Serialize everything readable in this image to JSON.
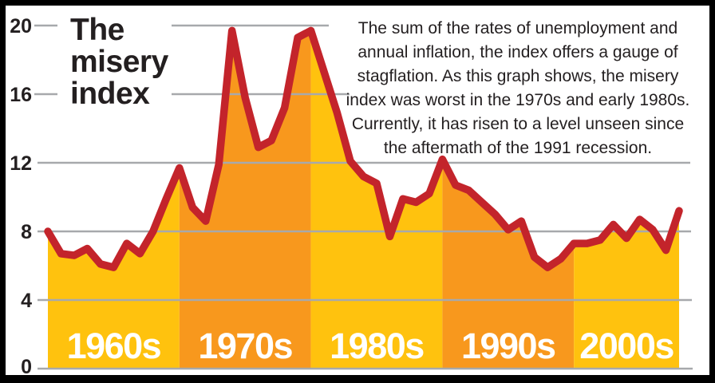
{
  "title": "The misery index",
  "description": {
    "lines": [
      "The sum of the rates of unemployment and",
      "annual inflation, the index offers a gauge of",
      "stagflation. As this graph shows, the misery",
      "index was worst in the 1970s and early 1980s.",
      "Currently, it has risen to a level unseen since",
      "the aftermath of the 1991 recession."
    ]
  },
  "chart_data": {
    "type": "area",
    "title": "The misery index",
    "subtitle": "The sum of the rates of unemployment and annual inflation, the index offers a gauge of stagflation. As this graph shows, the misery index was worst in the 1970s and early 1980s. Currently, it has risen to a level unseen since the aftermath of the 1991 recession.",
    "x_range": [
      1960,
      2008
    ],
    "ylim": [
      0,
      20
    ],
    "yticks": [
      20,
      16,
      12,
      8,
      4,
      0
    ],
    "grid": true,
    "years": [
      1960,
      1961,
      1962,
      1963,
      1964,
      1965,
      1966,
      1967,
      1968,
      1969,
      1970,
      1971,
      1972,
      1973,
      1974,
      1975,
      1976,
      1977,
      1978,
      1979,
      1980,
      1981,
      1982,
      1983,
      1984,
      1985,
      1986,
      1987,
      1988,
      1989,
      1990,
      1991,
      1992,
      1993,
      1994,
      1995,
      1996,
      1997,
      1998,
      1999,
      2000,
      2001,
      2002,
      2003,
      2004,
      2005,
      2006,
      2007,
      2008
    ],
    "values": [
      8.0,
      6.7,
      6.6,
      7.0,
      6.1,
      5.9,
      7.3,
      6.7,
      8.0,
      9.9,
      11.7,
      9.4,
      8.6,
      11.9,
      19.7,
      15.8,
      12.9,
      13.3,
      15.2,
      19.3,
      19.7,
      17.3,
      14.9,
      12.1,
      11.2,
      10.8,
      7.7,
      9.9,
      9.7,
      10.2,
      12.2,
      10.7,
      10.4,
      9.7,
      9.0,
      8.1,
      8.6,
      6.5,
      5.9,
      6.4,
      7.3,
      7.3,
      7.5,
      8.4,
      7.6,
      8.7,
      8.1,
      6.9,
      9.2
    ],
    "decade_bands": [
      {
        "label": "1960s",
        "from": 1960,
        "to": 1970,
        "fill": "#FFC20E"
      },
      {
        "label": "1970s",
        "from": 1970,
        "to": 1980,
        "fill": "#F8981D"
      },
      {
        "label": "1980s",
        "from": 1980,
        "to": 1990,
        "fill": "#FFC20E"
      },
      {
        "label": "1990s",
        "from": 1990,
        "to": 2000,
        "fill": "#F8981D"
      },
      {
        "label": "2000s",
        "from": 2000,
        "to": 2008,
        "fill": "#FFC20E"
      }
    ],
    "colors": {
      "line": "#C3242B",
      "band_yellow": "#FFC20E",
      "band_orange": "#F8981D",
      "grid": "#A7A9AC",
      "text": "#231F20",
      "decade_label": "#FFFFFF",
      "frame": "#000000",
      "background": "#FFFFFF"
    }
  }
}
